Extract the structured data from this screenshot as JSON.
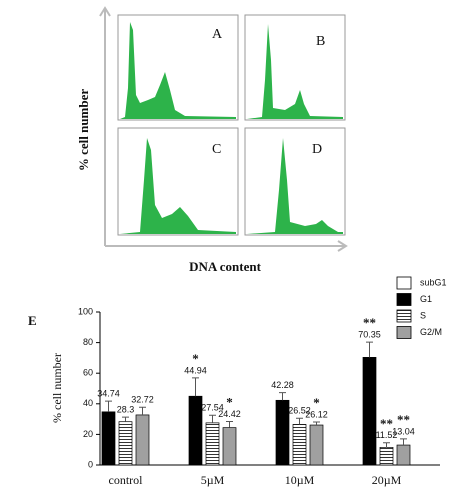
{
  "panels": [
    "A",
    "B",
    "C",
    "D"
  ],
  "y_label": "% cell number",
  "x_label": "DNA content",
  "chart_data": {
    "type": "bar",
    "panel_label": "E",
    "ylabel": "% cell number",
    "categories": [
      "control",
      "5µM",
      "10µM",
      "20µM"
    ],
    "series": [
      {
        "name": "subG1",
        "color": "#ffffff",
        "values": [
          null,
          null,
          null,
          null
        ],
        "errors": [
          null,
          null,
          null,
          null
        ],
        "stars": [
          null,
          null,
          null,
          null
        ]
      },
      {
        "name": "G1",
        "color": "#000000",
        "values": [
          34.74,
          44.94,
          42.28,
          70.35
        ],
        "errors": [
          7,
          12,
          5,
          10
        ],
        "stars": [
          null,
          "*",
          null,
          "**"
        ]
      },
      {
        "name": "S",
        "color": "#ffffff",
        "hatch": true,
        "values": [
          28.3,
          27.54,
          26.52,
          11.52
        ],
        "errors": [
          3,
          5,
          4,
          3
        ],
        "stars": [
          null,
          null,
          null,
          "**"
        ]
      },
      {
        "name": "G2/M",
        "color": "#a0a0a0",
        "values": [
          32.72,
          24.42,
          26.12,
          13.04
        ],
        "errors": [
          5,
          4,
          2,
          4
        ],
        "stars": [
          null,
          "*",
          "*",
          "**"
        ]
      }
    ],
    "ylim": [
      0,
      100
    ],
    "yticks": [
      0,
      20,
      40,
      60,
      80,
      100
    ]
  }
}
